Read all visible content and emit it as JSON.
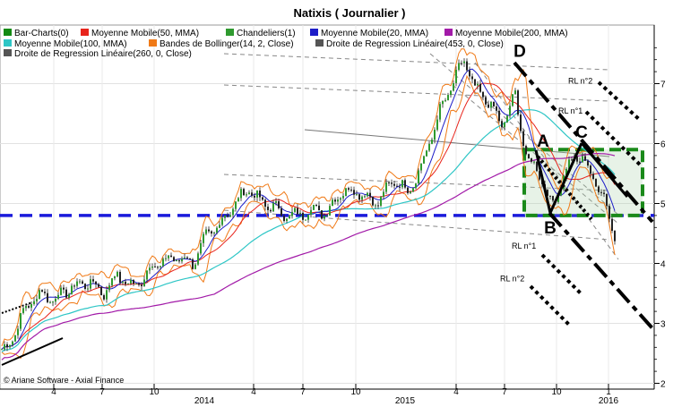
{
  "chart_data": {
    "type": "line",
    "title": "Natixis  ( Journalier )",
    "copyright": "© Ariane Software - Axial Finance",
    "legend": [
      {
        "label": "Bar-Charts(0)",
        "color": "#138a13"
      },
      {
        "label": "Moyenne Mobile(50, MMA)",
        "color": "#e8241c"
      },
      {
        "label": "Chandeliers(1)",
        "color": "#2f9a2f"
      },
      {
        "label": "Moyenne Mobile(20, MMA)",
        "color": "#1d1dc8"
      },
      {
        "label": "Moyenne Mobile(200, MMA)",
        "color": "#a21aa8"
      },
      {
        "label": "Moyenne Mobile(100, MMA)",
        "color": "#2ec6c6"
      },
      {
        "label": "Bandes de Bollinger(14, 2, Close)",
        "color": "#f07a17"
      },
      {
        "label": "Droite de Regression Linéaire(453, 0, Close)",
        "color": "#555555"
      },
      {
        "label": "Droite de Regression Linéaire(260, 0, Close)",
        "color": "#555555"
      }
    ],
    "y_ticks": [
      "7",
      "6",
      "5",
      "4",
      "3",
      "2"
    ],
    "ylim": [
      2,
      7.8
    ],
    "x_ticks_minor": [
      "4",
      "7",
      "10",
      "4",
      "7",
      "10",
      "4",
      "7",
      "10",
      "1"
    ],
    "x_ticks_major": [
      "2014",
      "2015",
      "2016"
    ],
    "price_path": [
      [
        0,
        2.5
      ],
      [
        8,
        2.6
      ],
      [
        18,
        2.9
      ],
      [
        30,
        3.3
      ],
      [
        45,
        3.5
      ],
      [
        60,
        3.4
      ],
      [
        80,
        3.6
      ],
      [
        100,
        3.7
      ],
      [
        115,
        3.5
      ],
      [
        130,
        3.8
      ],
      [
        150,
        3.6
      ],
      [
        170,
        3.95
      ],
      [
        185,
        4.05
      ],
      [
        200,
        4.1
      ],
      [
        215,
        4.0
      ],
      [
        230,
        4.45
      ],
      [
        248,
        4.7
      ],
      [
        262,
        5.0
      ],
      [
        278,
        5.25
      ],
      [
        292,
        5.0
      ],
      [
        305,
        4.95
      ],
      [
        318,
        4.8
      ],
      [
        332,
        4.8
      ],
      [
        348,
        4.9
      ],
      [
        365,
        4.85
      ],
      [
        380,
        5.2
      ],
      [
        400,
        5.2
      ],
      [
        420,
        5.0
      ],
      [
        440,
        5.4
      ],
      [
        455,
        5.2
      ],
      [
        470,
        5.6
      ],
      [
        490,
        6.5
      ],
      [
        505,
        7.0
      ],
      [
        518,
        7.4
      ],
      [
        530,
        6.9
      ],
      [
        545,
        6.7
      ],
      [
        560,
        6.3
      ],
      [
        575,
        6.8
      ],
      [
        588,
        5.7
      ],
      [
        600,
        5.6
      ],
      [
        615,
        4.95
      ],
      [
        628,
        5.4
      ],
      [
        640,
        5.8
      ],
      [
        652,
        5.7
      ],
      [
        665,
        5.35
      ],
      [
        675,
        5.05
      ],
      [
        688,
        4.35
      ]
    ],
    "horizontal_level": 4.8,
    "rectangle": {
      "x_from": 585,
      "x_to": 717,
      "y_from": 4.8,
      "y_to": 5.9
    },
    "annotations": [
      {
        "text": "A",
        "x": 606,
        "y": 5.95
      },
      {
        "text": "B",
        "x": 614,
        "y": 4.5
      },
      {
        "text": "C",
        "x": 649,
        "y": 6.1
      },
      {
        "text": "D",
        "x": 580,
        "y": 7.45
      }
    ],
    "rl_labels": [
      {
        "text": "RL n°2",
        "x": 634,
        "y": 7.0
      },
      {
        "text": "RL n°1",
        "x": 623,
        "y": 6.5
      },
      {
        "text": "RL n°1",
        "x": 571,
        "y": 4.25
      },
      {
        "text": "RL n°2",
        "x": 558,
        "y": 3.7
      }
    ]
  }
}
